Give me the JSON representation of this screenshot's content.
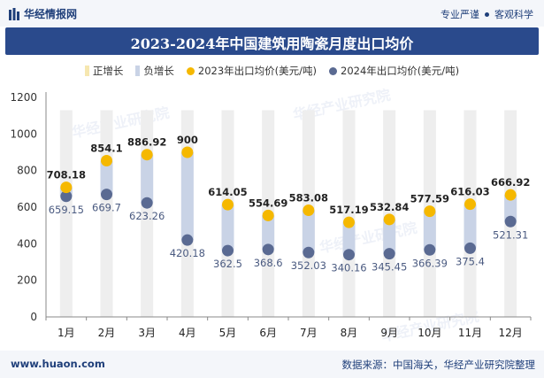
{
  "header": {
    "brand": "华经情报网",
    "tag1": "专业严谨",
    "tag2": "客观科学"
  },
  "footer": {
    "website": "www.huaon.com",
    "source": "数据来源：中国海关，华经产业研究院整理"
  },
  "watermark": "华经产业研究院",
  "colors": {
    "title_bg": "#2a4a8c",
    "pos_bar": "#f6e7b0",
    "neg_bar": "#c9d3e6",
    "dot_2023": "#f5b800",
    "dot_2024": "#5a6a92"
  },
  "chart_data": {
    "type": "scatter",
    "title": "2023-2024年中国建筑用陶瓷月度出口均价",
    "categories": [
      "1月",
      "2月",
      "3月",
      "4月",
      "5月",
      "6月",
      "7月",
      "8月",
      "9月",
      "10月",
      "11月",
      "12月"
    ],
    "legend": [
      "正增长",
      "负增长",
      "2023年出口均价(美元/吨)",
      "2024年出口均价(美元/吨)"
    ],
    "series": [
      {
        "name": "2023年出口均价(美元/吨)",
        "values": [
          708.18,
          854.1,
          886.92,
          900,
          614.05,
          554.69,
          583.08,
          517.19,
          532.84,
          577.59,
          616.03,
          666.92
        ]
      },
      {
        "name": "2024年出口均价(美元/吨)",
        "values": [
          659.15,
          669.7,
          623.26,
          420.18,
          362.5,
          368.6,
          352.03,
          340.16,
          345.45,
          366.39,
          375.4,
          521.31
        ]
      }
    ],
    "value_labels_2023": [
      "708.18",
      "854.1",
      "886.92",
      "900",
      "614.05",
      "554.69",
      "583.08",
      "517.19",
      "532.84",
      "577.59",
      "616.03",
      "666.92"
    ],
    "value_labels_2024": [
      "659.15",
      "669.7",
      "623.26",
      "420.18",
      "362.5",
      "368.6",
      "352.03",
      "340.16",
      "345.45",
      "366.39",
      "375.4",
      "521.31"
    ],
    "ylim": [
      0,
      1200
    ],
    "yticks": [
      0,
      200,
      400,
      600,
      800,
      1000,
      1200
    ],
    "ytick_labels": [
      "0",
      "200",
      "400",
      "600",
      "800",
      "1000",
      "1200"
    ],
    "legend_position": "top",
    "grid": false
  }
}
